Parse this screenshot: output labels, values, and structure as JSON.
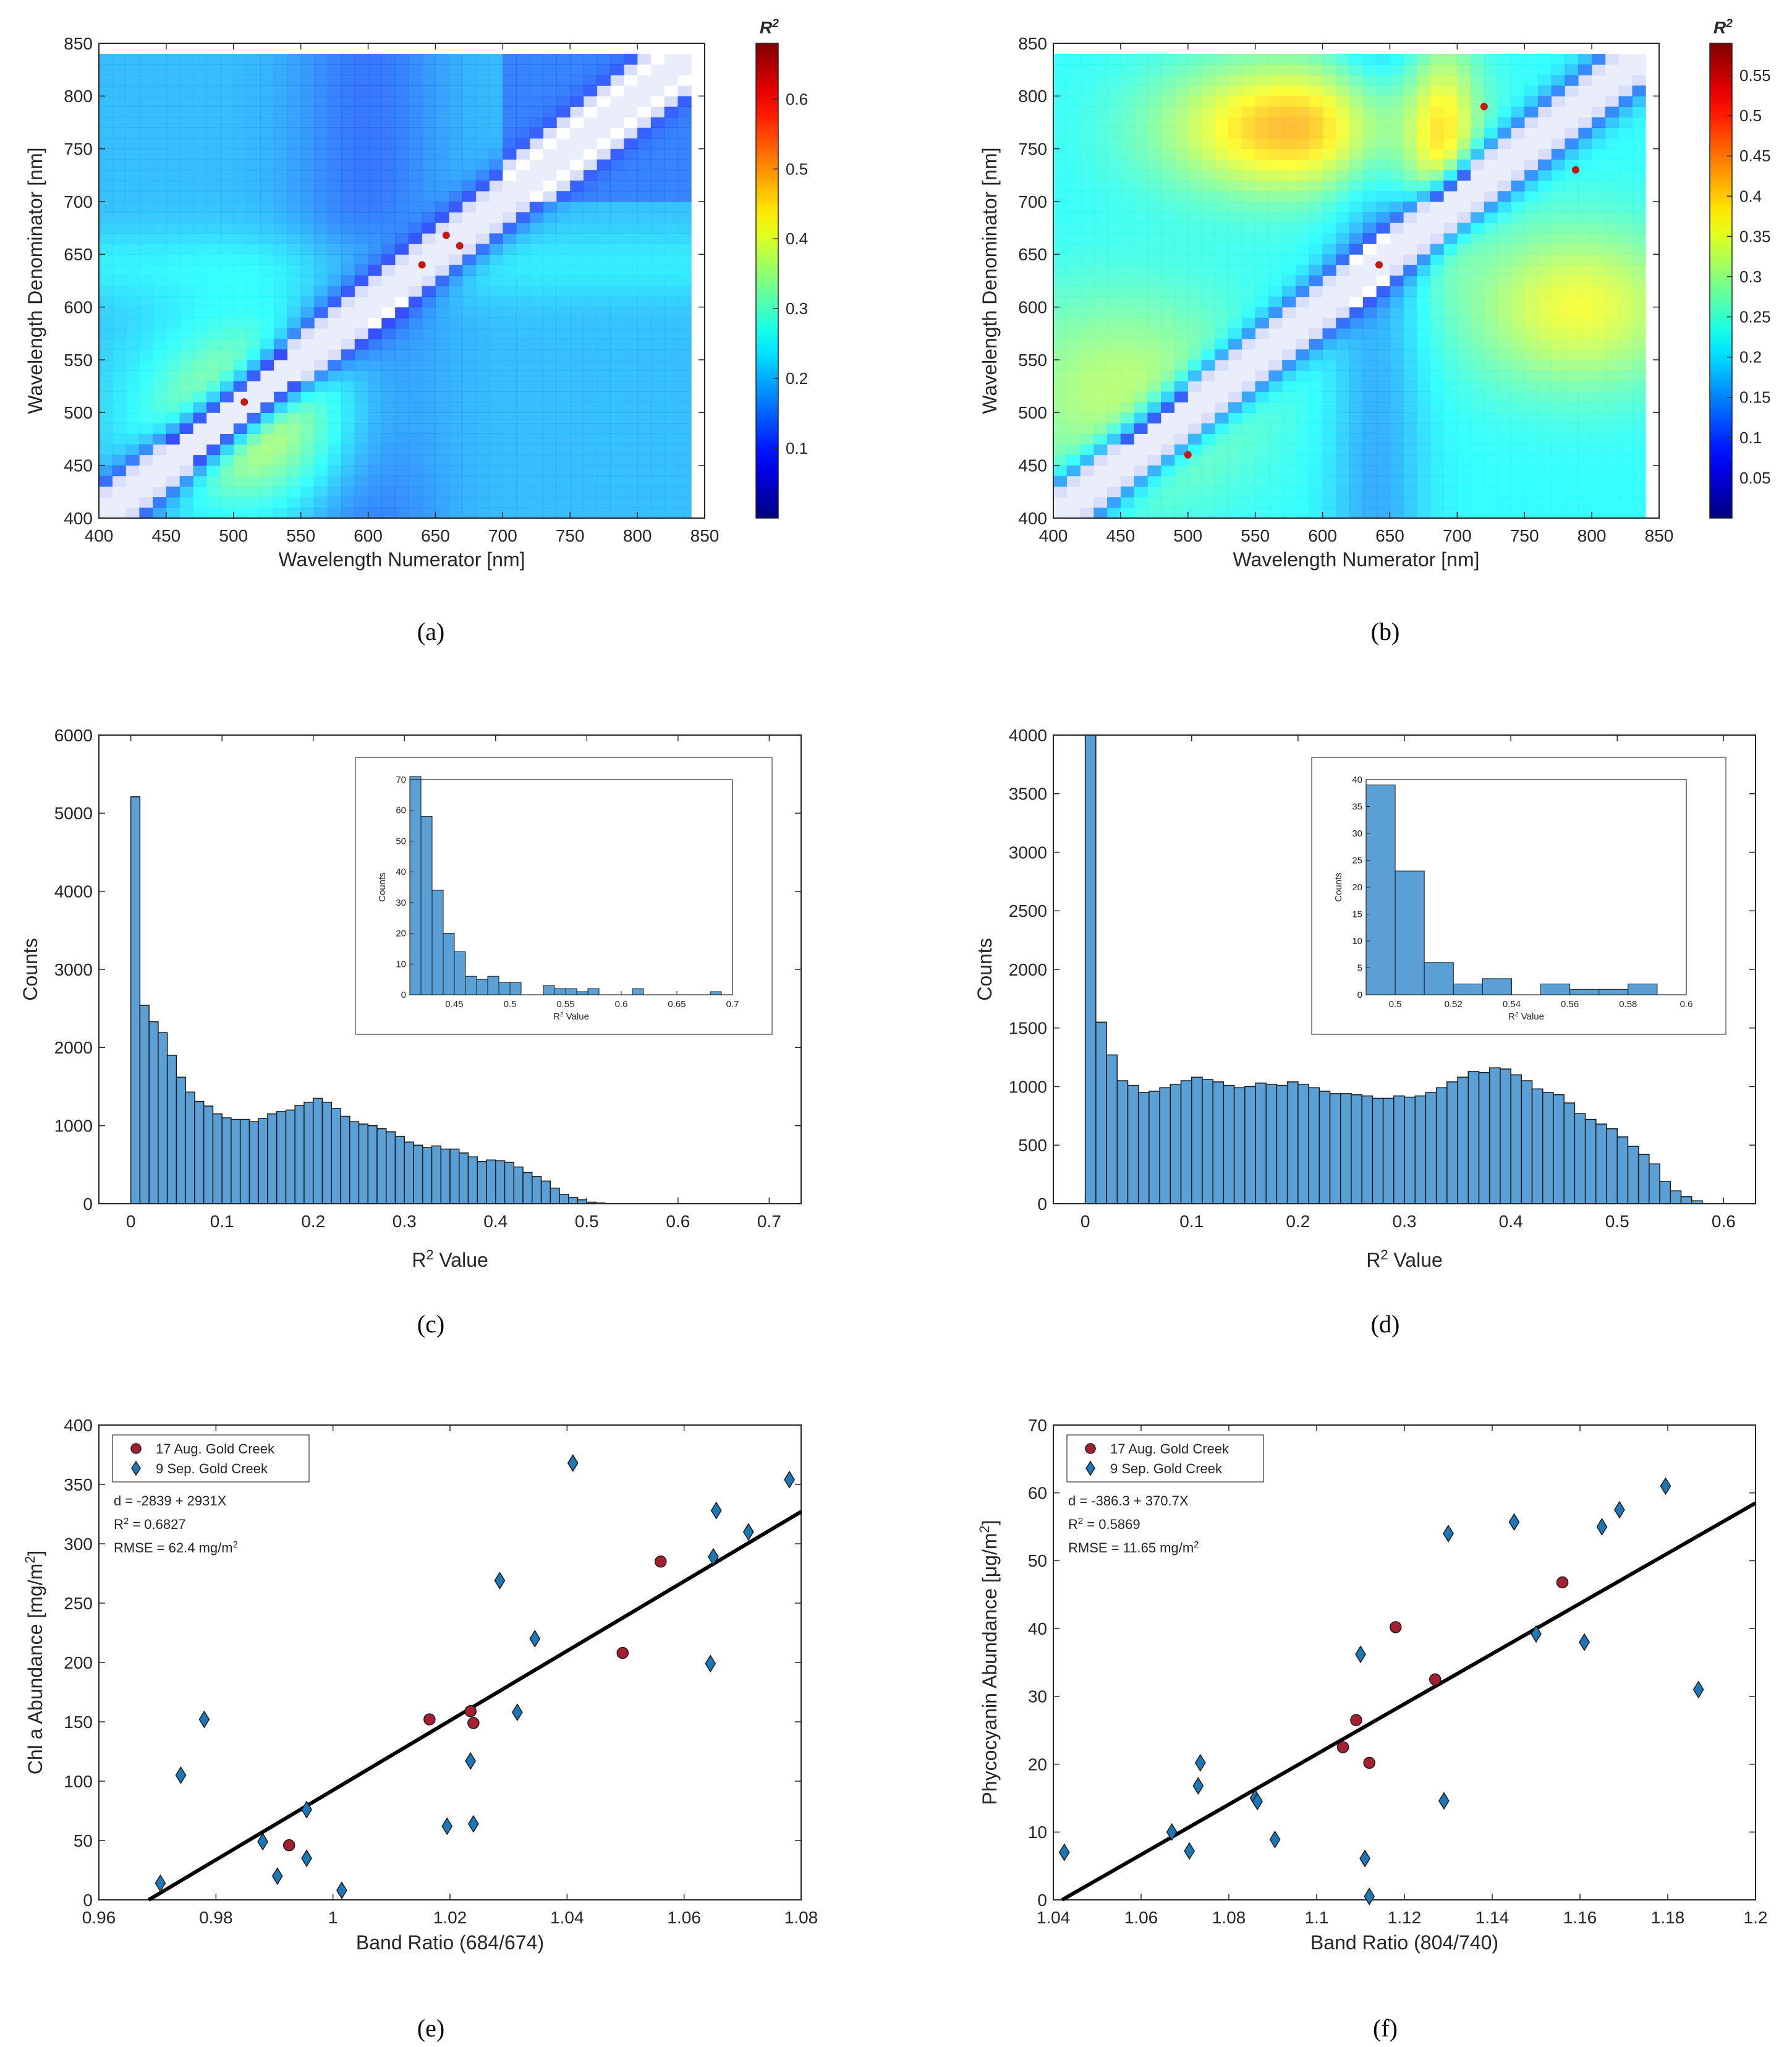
{
  "chart_data": [
    {
      "panel": "a",
      "type": "heatmap",
      "caption": "(a)",
      "xlabel": "Wavelength Numerator [nm]",
      "ylabel": "Wavelength Denominator [nm]",
      "xlim": [
        400,
        850
      ],
      "ylim": [
        400,
        850
      ],
      "xticks": [
        400,
        450,
        500,
        550,
        600,
        650,
        700,
        750,
        800,
        850
      ],
      "yticks": [
        400,
        450,
        500,
        550,
        600,
        650,
        700,
        750,
        800,
        850
      ],
      "colorbar": {
        "title": "R",
        "superscript": "2",
        "min": 0,
        "max": 0.68,
        "ticks": [
          0.1,
          0.2,
          0.3,
          0.4,
          0.5,
          0.6
        ]
      },
      "variant": 0
    },
    {
      "panel": "b",
      "type": "heatmap",
      "caption": "(b)",
      "xlabel": "Wavelength Numerator [nm]",
      "ylabel": "Wavelength Denominator [nm]",
      "xlim": [
        400,
        850
      ],
      "ylim": [
        400,
        850
      ],
      "xticks": [
        400,
        450,
        500,
        550,
        600,
        650,
        700,
        750,
        800,
        850
      ],
      "yticks": [
        400,
        450,
        500,
        550,
        600,
        650,
        700,
        750,
        800,
        850
      ],
      "colorbar": {
        "title": "R",
        "superscript": "2",
        "min": 0,
        "max": 0.59,
        "ticks": [
          0.05,
          0.1,
          0.15,
          0.2,
          0.25,
          0.3,
          0.35,
          0.4,
          0.45,
          0.5,
          0.55
        ]
      },
      "variant": 1
    },
    {
      "panel": "c",
      "type": "bar",
      "caption": "(c)",
      "xlabel": "R",
      "xlabel_sup": "2",
      "xlabel_tail": " Value",
      "ylabel": "Counts",
      "xlim": [
        -0.035,
        0.735
      ],
      "ylim": [
        0,
        6000
      ],
      "xticks": [
        0,
        0.1,
        0.2,
        0.3,
        0.4,
        0.5,
        0.6,
        0.7
      ],
      "yticks": [
        0,
        1000,
        2000,
        3000,
        4000,
        5000,
        6000
      ],
      "bin_start": 0,
      "bin_width": 0.01,
      "values": [
        5210,
        2540,
        2330,
        2190,
        1900,
        1620,
        1430,
        1310,
        1250,
        1150,
        1100,
        1080,
        1080,
        1050,
        1090,
        1150,
        1180,
        1200,
        1260,
        1300,
        1350,
        1300,
        1220,
        1120,
        1050,
        1020,
        1000,
        960,
        920,
        860,
        790,
        750,
        720,
        740,
        700,
        700,
        650,
        600,
        540,
        560,
        550,
        530,
        470,
        400,
        350,
        290,
        200,
        120,
        80,
        50,
        20,
        10
      ],
      "inset": {
        "xlabel": "R",
        "xlabel_sup": "2",
        "xlabel_tail": " Value",
        "ylabel": "Counts",
        "xlim": [
          0.41,
          0.7
        ],
        "ylim": [
          0,
          70
        ],
        "xticks": [
          0.45,
          0.5,
          0.55,
          0.6,
          0.65,
          0.7
        ],
        "yticks": [
          0,
          10,
          20,
          30,
          40,
          50,
          60,
          70
        ],
        "bin_start": 0.41,
        "bin_width": 0.01,
        "values": [
          71,
          58,
          34,
          20,
          14,
          6,
          5,
          6,
          4,
          4,
          0,
          0,
          3,
          2,
          2,
          1,
          2,
          0,
          0,
          0,
          2,
          0,
          0,
          0,
          0,
          0,
          0,
          1,
          0
        ]
      }
    },
    {
      "panel": "d",
      "type": "bar",
      "caption": "(d)",
      "xlabel": "R",
      "xlabel_sup": "2",
      "xlabel_tail": " Value",
      "ylabel": "Counts",
      "xlim": [
        -0.03,
        0.63
      ],
      "ylim": [
        0,
        4000
      ],
      "xticks": [
        0,
        0.1,
        0.2,
        0.3,
        0.4,
        0.5,
        0.6
      ],
      "yticks": [
        0,
        500,
        1000,
        1500,
        2000,
        2500,
        3000,
        3500,
        4000
      ],
      "bin_start": 0,
      "bin_width": 0.01,
      "values": [
        4000,
        1550,
        1270,
        1050,
        1010,
        950,
        960,
        990,
        1020,
        1050,
        1080,
        1060,
        1040,
        1010,
        990,
        1000,
        1030,
        1020,
        1010,
        1040,
        1020,
        990,
        960,
        940,
        940,
        930,
        920,
        900,
        900,
        920,
        910,
        920,
        950,
        990,
        1040,
        1080,
        1130,
        1120,
        1160,
        1150,
        1100,
        1050,
        980,
        950,
        930,
        860,
        770,
        720,
        680,
        640,
        570,
        490,
        420,
        340,
        190,
        110,
        60,
        25
      ],
      "inset": {
        "xlabel": "R",
        "xlabel_sup": "2",
        "xlabel_tail": " Value",
        "ylabel": "Counts",
        "xlim": [
          0.49,
          0.6
        ],
        "ylim": [
          0,
          40
        ],
        "xticks": [
          0.5,
          0.52,
          0.54,
          0.56,
          0.58,
          0.6
        ],
        "yticks": [
          0,
          5,
          10,
          15,
          20,
          25,
          30,
          35,
          40
        ],
        "bin_start": 0.49,
        "bin_width": 0.01,
        "values": [
          39,
          23,
          6,
          2,
          3,
          0,
          2,
          1,
          1,
          2
        ]
      }
    },
    {
      "panel": "e",
      "type": "scatter",
      "caption": "(e)",
      "xlabel": "Band Ratio (684/674)",
      "ylabel": "Chl a Abundance [mg/m",
      "ylabel_sup": "2",
      "ylabel_tail": "]",
      "xlim": [
        0.96,
        1.08
      ],
      "ylim": [
        0,
        400
      ],
      "xticks": [
        0.96,
        0.98,
        1,
        1.02,
        1.04,
        1.06,
        1.08
      ],
      "xtick_labels": [
        "0.96",
        "0.98",
        "1",
        "1.02",
        "1.04",
        "1.06",
        "1.08"
      ],
      "yticks": [
        0,
        50,
        100,
        150,
        200,
        250,
        300,
        350,
        400
      ],
      "series": [
        {
          "name": "17 Aug. Gold Creek",
          "marker": "circle",
          "color": "#a41f2f",
          "x": [
            0.9925,
            1.0165,
            1.0235,
            1.024,
            1.0495,
            1.056
          ],
          "y": [
            46,
            152,
            159,
            149,
            208,
            285
          ]
        },
        {
          "name": "9 Sep. Gold Creek",
          "marker": "diamond",
          "color": "#1b77b5",
          "x": [
            0.9705,
            0.974,
            0.978,
            0.988,
            0.9905,
            0.9955,
            0.9955,
            1.0015,
            1.0195,
            1.0235,
            1.024,
            1.0285,
            1.0315,
            1.0345,
            1.041,
            1.0645,
            1.065,
            1.0655,
            1.071,
            1.078
          ],
          "y": [
            14,
            105,
            152,
            49,
            20,
            35,
            76,
            8,
            62,
            117,
            64,
            269,
            158,
            220,
            368,
            199,
            289,
            328,
            310,
            354
          ]
        }
      ],
      "fit": {
        "x": [
          0.9685,
          1.08
        ],
        "y": [
          0,
          327
        ]
      },
      "stats": {
        "equation": "d = -2839 + 2931X",
        "r2_label": "R",
        "r2_value": " = 0.6827",
        "rmse_label": "RMSE = 62.4 mg/m",
        "rmse_sup": "2"
      }
    },
    {
      "panel": "f",
      "type": "scatter",
      "caption": "(f)",
      "xlabel": "Band Ratio (804/740)",
      "ylabel": "Phycocyanin Abundance [μg/m",
      "ylabel_sup": "2",
      "ylabel_tail": "]",
      "xlim": [
        1.04,
        1.2
      ],
      "ylim": [
        0,
        70
      ],
      "xticks": [
        1.04,
        1.06,
        1.08,
        1.1,
        1.12,
        1.14,
        1.16,
        1.18,
        1.2
      ],
      "xtick_labels": [
        "1.04",
        "1.06",
        "1.08",
        "1.1",
        "1.12",
        "1.14",
        "1.16",
        "1.18",
        "1.2"
      ],
      "yticks": [
        0,
        10,
        20,
        30,
        40,
        50,
        60,
        70
      ],
      "series": [
        {
          "name": "17 Aug. Gold Creek",
          "marker": "circle",
          "color": "#a41f2f",
          "x": [
            1.106,
            1.109,
            1.112,
            1.118,
            1.127,
            1.156
          ],
          "y": [
            22.5,
            26.5,
            20.2,
            40.2,
            32.5,
            46.8
          ]
        },
        {
          "name": "9 Sep. Gold Creek",
          "marker": "diamond",
          "color": "#1b77b5",
          "x": [
            1.0425,
            1.067,
            1.071,
            1.073,
            1.0735,
            1.086,
            1.0865,
            1.0905,
            1.11,
            1.111,
            1.112,
            1.129,
            1.13,
            1.145,
            1.15,
            1.161,
            1.165,
            1.169,
            1.1795,
            1.187
          ],
          "y": [
            7,
            10,
            7.2,
            16.8,
            20.2,
            15,
            14.5,
            8.9,
            36.2,
            6.1,
            0.5,
            14.6,
            54,
            55.7,
            39.2,
            38,
            55,
            57.5,
            61,
            31
          ]
        }
      ],
      "fit": {
        "x": [
          1.042,
          1.2
        ],
        "y": [
          0,
          58.5
        ]
      },
      "stats": {
        "equation": "d = -386.3 + 370.7X",
        "r2_label": "R",
        "r2_value": " = 0.5869",
        "rmse_label": "RMSE = 11.65 mg/m",
        "rmse_sup": "2"
      }
    }
  ]
}
